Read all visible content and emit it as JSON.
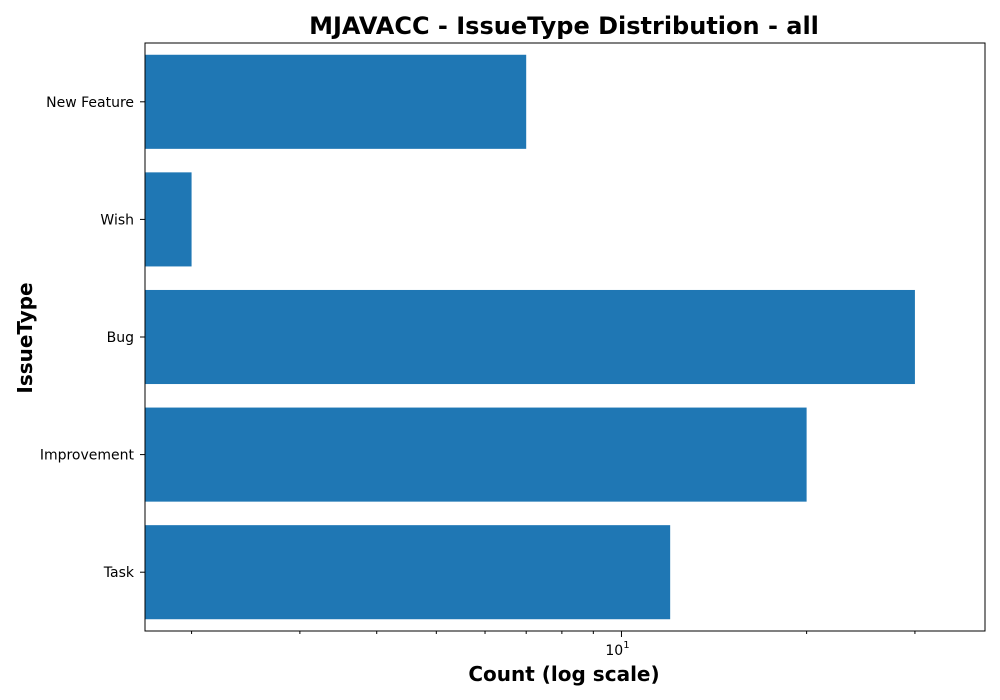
{
  "chart_data": {
    "type": "bar",
    "orientation": "horizontal",
    "title": "MJAVACC - IssueType Distribution - all",
    "xlabel": "Count (log scale)",
    "ylabel": "IssueType",
    "x_scale": "log",
    "xlim": [
      1.68,
      39.0
    ],
    "grid": false,
    "categories": [
      "New Feature",
      "Wish",
      "Bug",
      "Improvement",
      "Task"
    ],
    "values": [
      7,
      2,
      30,
      20,
      12
    ],
    "bar_color": "#1f77b4",
    "major_tick": {
      "base": "10",
      "exponent": "1",
      "value": 10
    },
    "minor_tick_values": [
      2,
      3,
      4,
      5,
      6,
      7,
      8,
      9,
      20,
      30
    ]
  }
}
